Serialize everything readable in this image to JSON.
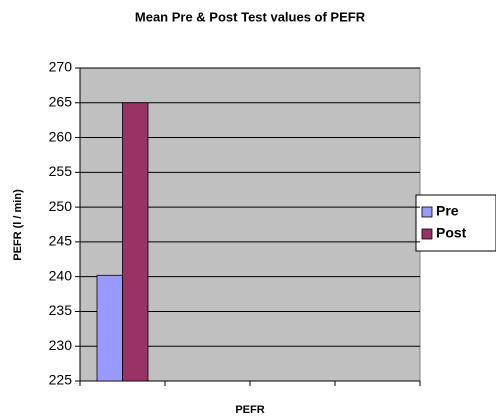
{
  "chart_data": {
    "type": "bar",
    "title": "Mean Pre & Post Test values of PEFR",
    "x_label": "PEFR",
    "y_label": "PEFR (l / min)",
    "categories": [
      null,
      null,
      null,
      null
    ],
    "series": [
      {
        "name": "Pre",
        "color": "#9999ff",
        "values": [
          240.2,
          null,
          null,
          null
        ]
      },
      {
        "name": "Post",
        "color": "#993366",
        "values": [
          265,
          null,
          null,
          null
        ]
      }
    ],
    "ylim": [
      225,
      270
    ],
    "yticks": [
      225,
      230,
      235,
      240,
      245,
      250,
      255,
      260,
      265,
      270
    ],
    "grid": true,
    "legend": "right"
  }
}
